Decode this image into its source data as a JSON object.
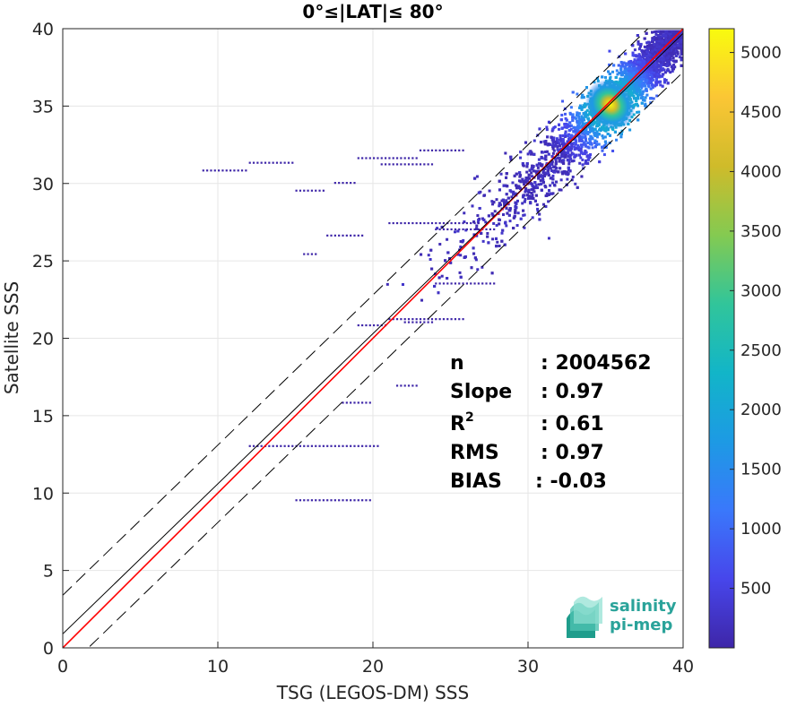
{
  "chart_data": {
    "type": "heatmap",
    "title": "0°≤|LAT|≤ 80°",
    "xlabel": "TSG (LEGOS-DM) SSS",
    "ylabel": "Satellite SSS",
    "xlim": [
      0,
      40
    ],
    "ylim": [
      0,
      40
    ],
    "xticks": [
      "0",
      "10",
      "20",
      "30",
      "40"
    ],
    "yticks": [
      "0",
      "5",
      "10",
      "15",
      "20",
      "25",
      "30",
      "35",
      "40"
    ],
    "grid": true,
    "colorbar": {
      "range": [
        0,
        5200
      ],
      "ticks": [
        "500",
        "1000",
        "1500",
        "2000",
        "2500",
        "3000",
        "3500",
        "4000",
        "4500",
        "5000"
      ],
      "colormap": [
        "#3e26a8",
        "#4746eb",
        "#3a78fb",
        "#1d9ae4",
        "#12b5c8",
        "#31c59a",
        "#84ca51",
        "#cfbb2a",
        "#fbc635",
        "#f9fb0e"
      ]
    },
    "lines": [
      {
        "name": "",
        "slope": 1,
        "intercept": 0,
        "color": "#ff0000",
        "style": "solid"
      },
      {
        "name": "",
        "slope": 0.97,
        "intercept": 0.9,
        "color": "#000000",
        "style": "solid"
      },
      {
        "name": "",
        "slope": 0.97,
        "intercept": 3.4,
        "color": "#000000",
        "style": "dashed"
      },
      {
        "name": "",
        "slope": 0.97,
        "intercept": -1.6,
        "color": "#000000",
        "style": "dashed"
      }
    ],
    "density_peak": {
      "x": 35.3,
      "y": 35.1,
      "value": 5200
    },
    "stats": [
      {
        "label": "n",
        "value": ": 2004562"
      },
      {
        "label": "Slope",
        "value": ": 0.97"
      },
      {
        "label": "R",
        "sup": "2",
        "value": ": 0.61"
      },
      {
        "label": "RMS",
        "value": ": 0.97"
      },
      {
        "label": "BIAS",
        "value": ": -0.03"
      }
    ]
  },
  "logo": {
    "line1": "salinity",
    "line2": "pi-mep"
  }
}
